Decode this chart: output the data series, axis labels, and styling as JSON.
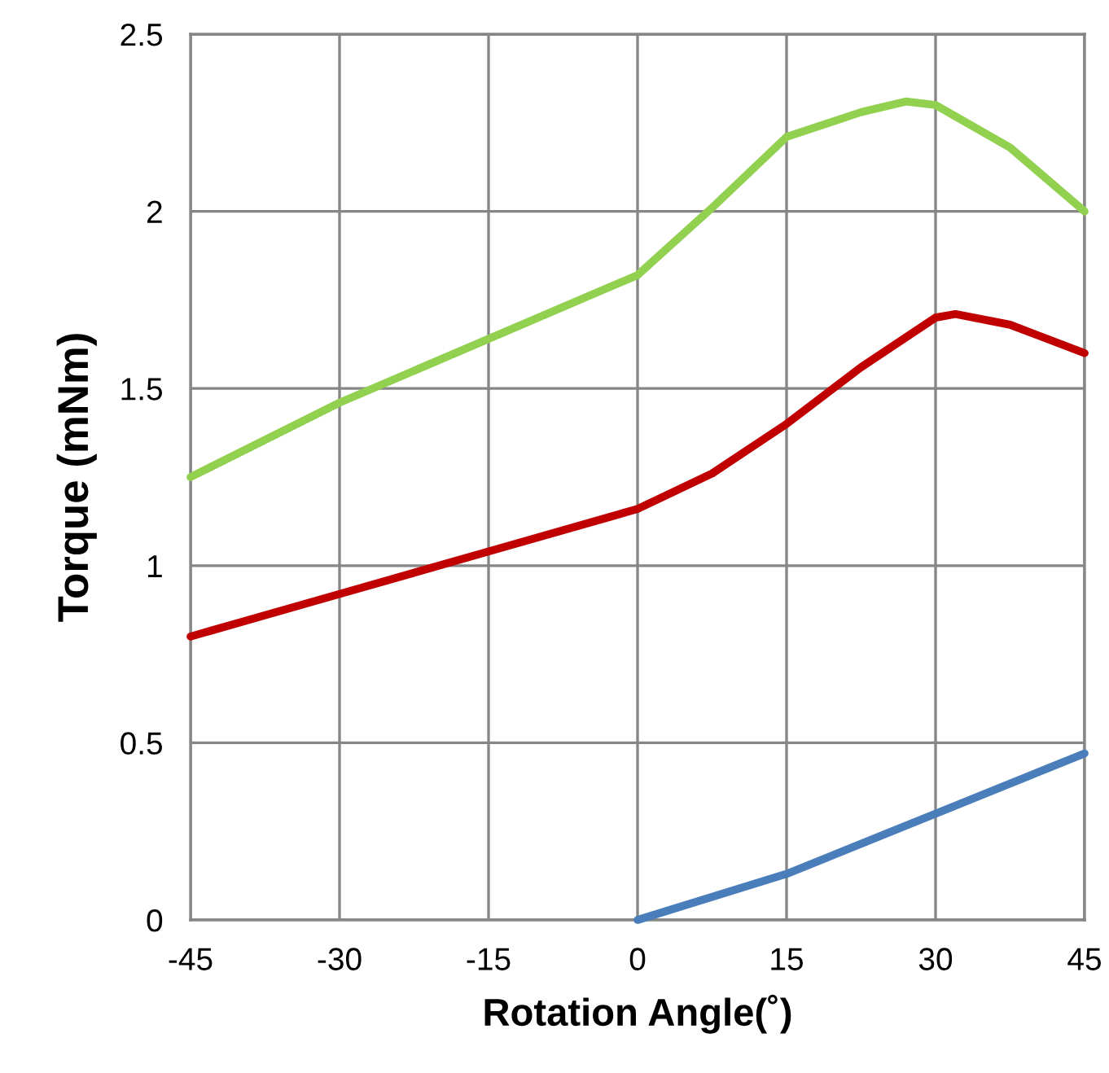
{
  "chart_data": {
    "type": "line",
    "xlabel": "Rotation Angle(˚)",
    "ylabel": "Torque (mNm)",
    "xlim": [
      -45,
      45
    ],
    "xticks": [
      -45,
      -30,
      -15,
      0,
      15,
      30,
      45
    ],
    "ylim": [
      0,
      2.5
    ],
    "yticks": [
      0,
      0.5,
      1,
      1.5,
      2,
      2.5
    ],
    "grid": true,
    "marker": "none",
    "line_style": "solid",
    "series": [
      {
        "color": "#92d050",
        "x": [
          -45,
          -30,
          -15,
          0,
          7.5,
          15,
          22.5,
          27,
          30,
          37.5,
          45
        ],
        "values": [
          1.25,
          1.46,
          1.64,
          1.82,
          2.01,
          2.21,
          2.28,
          2.31,
          2.3,
          2.18,
          2.0
        ]
      },
      {
        "color": "#c00000",
        "x": [
          -45,
          -30,
          -15,
          0,
          7.5,
          15,
          22.5,
          30,
          32,
          37.5,
          45
        ],
        "values": [
          0.8,
          0.92,
          1.04,
          1.16,
          1.26,
          1.4,
          1.56,
          1.7,
          1.71,
          1.68,
          1.6
        ]
      },
      {
        "color": "#4a7ebb",
        "x": [
          0,
          15,
          30,
          45
        ],
        "values": [
          0,
          0.13,
          0.3,
          0.47
        ]
      }
    ]
  }
}
